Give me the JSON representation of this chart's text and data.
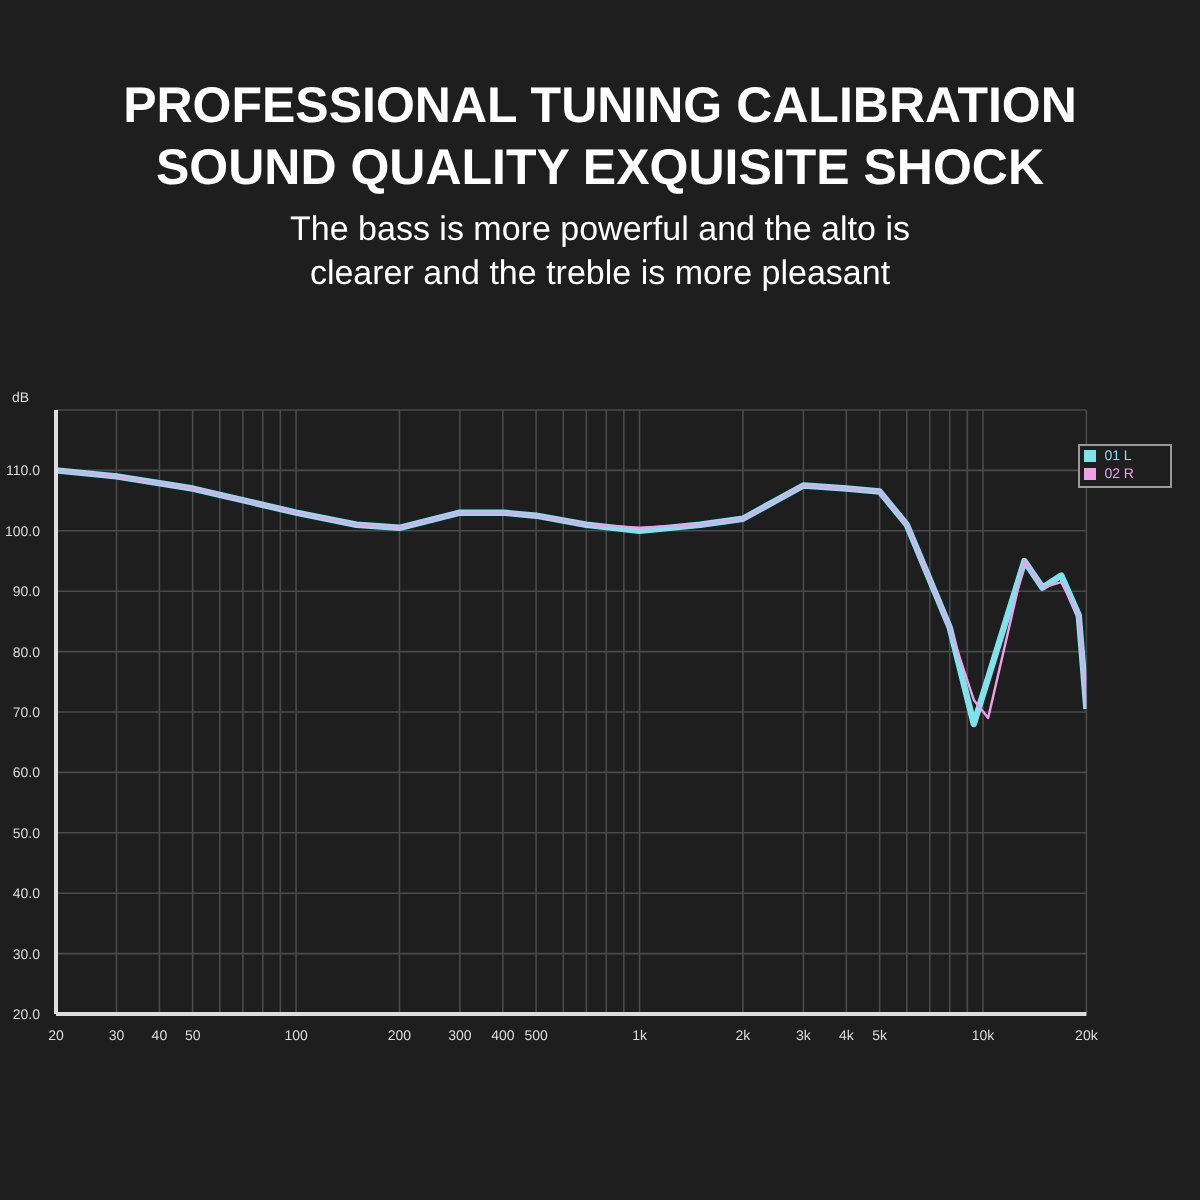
{
  "chart_data": {
    "type": "line",
    "title": "PROFESSIONAL TUNING CALIBRATION SOUND QUALITY EXQUISITE SHOCK",
    "subtitle": "The bass is more powerful and the alto is clearer and the treble is more pleasant",
    "ylabel": "dB",
    "log": "x",
    "grid": true,
    "legend": "top right",
    "marker": "none",
    "line_style": "solid",
    "xlim": [
      20,
      20000
    ],
    "ylim": [
      20,
      120
    ],
    "xticks": [
      20,
      30,
      40,
      50,
      {
        "value": 60,
        "label": null
      },
      {
        "value": 70,
        "label": null
      },
      {
        "value": 80,
        "label": null
      },
      {
        "value": 90,
        "label": null
      },
      100,
      200,
      300,
      400,
      500,
      {
        "value": 600,
        "label": null
      },
      {
        "value": 700,
        "label": null
      },
      {
        "value": 800,
        "label": null
      },
      {
        "value": 900,
        "label": null
      },
      {
        "value": 1000,
        "label": "1k"
      },
      {
        "value": 2000,
        "label": "2k"
      },
      {
        "value": 3000,
        "label": "3k"
      },
      {
        "value": 4000,
        "label": "4k"
      },
      {
        "value": 5000,
        "label": "5k"
      },
      {
        "value": 6000,
        "label": null
      },
      {
        "value": 7000,
        "label": null
      },
      {
        "value": 8000,
        "label": null
      },
      {
        "value": 9000,
        "label": null
      },
      {
        "value": 10000,
        "label": "10k"
      },
      {
        "value": 20000,
        "label": "20k"
      }
    ],
    "yticks": [
      {
        "value": 20,
        "label": "20.0"
      },
      {
        "value": 30,
        "label": "30.0"
      },
      {
        "value": 40,
        "label": "40.0"
      },
      {
        "value": 50,
        "label": "50.0"
      },
      {
        "value": 60,
        "label": "60.0"
      },
      {
        "value": 70,
        "label": "70.0"
      },
      {
        "value": 80,
        "label": "80.0"
      },
      {
        "value": 90,
        "label": "90.0"
      },
      {
        "value": 100,
        "label": "100.0"
      },
      {
        "value": 110,
        "label": "110.0"
      }
    ],
    "series": [
      {
        "name": "01 L",
        "color": "#7fe3ee",
        "x": [
          20,
          30,
          50,
          100,
          150,
          200,
          300,
          400,
          500,
          700,
          1000,
          1500,
          2000,
          3000,
          4000,
          5000,
          6000,
          8000,
          9400,
          13200,
          14900,
          16900,
          19000,
          20000
        ],
        "values": [
          110,
          109,
          107,
          103,
          101,
          100.5,
          103,
          103,
          102.5,
          101,
          100,
          101,
          102,
          107.5,
          107,
          106.5,
          101,
          84,
          68,
          95,
          90.6,
          92.6,
          86,
          70.5
        ]
      },
      {
        "name": "02 R",
        "color": "#f0a0e8",
        "x": [
          20,
          30,
          50,
          100,
          150,
          200,
          300,
          400,
          500,
          700,
          1000,
          1500,
          2000,
          3000,
          4000,
          5000,
          6000,
          8000,
          9400,
          10350,
          13200,
          14900,
          16900,
          19000,
          20000
        ],
        "values": [
          110,
          109,
          107,
          103,
          101,
          100.5,
          103,
          103,
          102.5,
          101,
          100.5,
          101,
          102,
          107.5,
          107,
          106.5,
          101,
          84,
          72,
          69,
          95,
          90.6,
          91.5,
          86,
          70.5
        ]
      }
    ]
  }
}
